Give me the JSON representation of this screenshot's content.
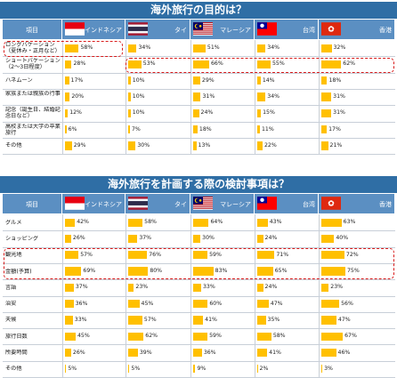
{
  "colors": {
    "title_bg": "#2f6ea5",
    "header_bg": "#5b8fc2",
    "bar": "#ffc000",
    "highlight": "#d81b1b"
  },
  "chart_data": [
    {
      "type": "table",
      "title": "海外旅行の目的は？",
      "category_header": "項目",
      "categories": [
        "ロングバケーション（夏休み・正月など）",
        "ショートバケーション（2～3日程度）",
        "ハネムーン",
        "家族または親族の行事",
        "記念（誕生日、結婚記念日など）",
        "高校または大学の卒業旅行",
        "その他"
      ],
      "series": [
        {
          "name": "インドネシア",
          "flag": "indonesia",
          "values": [
            58,
            28,
            17,
            20,
            12,
            6,
            29
          ]
        },
        {
          "name": "タイ",
          "flag": "thailand",
          "values": [
            34,
            53,
            10,
            10,
            10,
            7,
            30
          ]
        },
        {
          "name": "マレーシア",
          "flag": "malaysia",
          "values": [
            51,
            66,
            29,
            31,
            24,
            18,
            13
          ]
        },
        {
          "name": "台湾",
          "flag": "taiwan",
          "values": [
            34,
            55,
            14,
            34,
            15,
            11,
            22
          ]
        },
        {
          "name": "香港",
          "flag": "hongkong",
          "values": [
            32,
            62,
            18,
            31,
            31,
            17,
            21
          ]
        }
      ],
      "value_format": "%",
      "xlim": [
        0,
        100
      ],
      "highlights": [
        "ロングバケーション/インドネシア",
        "ショートバケーション/全列"
      ]
    },
    {
      "type": "table",
      "title": "海外旅行を計画する際の検討事項は？",
      "category_header": "項目",
      "categories": [
        "グルメ",
        "ショッピング",
        "観光地",
        "金額(予算)",
        "言語",
        "治安",
        "天候",
        "旅行日数",
        "所要時間",
        "その他"
      ],
      "series": [
        {
          "name": "インドネシア",
          "flag": "indonesia",
          "values": [
            42,
            26,
            57,
            69,
            37,
            36,
            33,
            45,
            26,
            5
          ]
        },
        {
          "name": "タイ",
          "flag": "thailand",
          "values": [
            58,
            37,
            76,
            80,
            23,
            45,
            57,
            62,
            39,
            5
          ]
        },
        {
          "name": "マレーシア",
          "flag": "malaysia",
          "values": [
            64,
            30,
            59,
            83,
            33,
            60,
            41,
            59,
            36,
            9
          ]
        },
        {
          "name": "台湾",
          "flag": "taiwan",
          "values": [
            43,
            24,
            71,
            65,
            24,
            47,
            35,
            58,
            41,
            2
          ]
        },
        {
          "name": "香港",
          "flag": "hongkong",
          "values": [
            63,
            40,
            72,
            75,
            23,
            56,
            47,
            67,
            46,
            3
          ]
        }
      ],
      "value_format": "%",
      "xlim": [
        0,
        100
      ],
      "highlights": [
        "観光地/全列",
        "金額(予算)/全列"
      ]
    }
  ]
}
